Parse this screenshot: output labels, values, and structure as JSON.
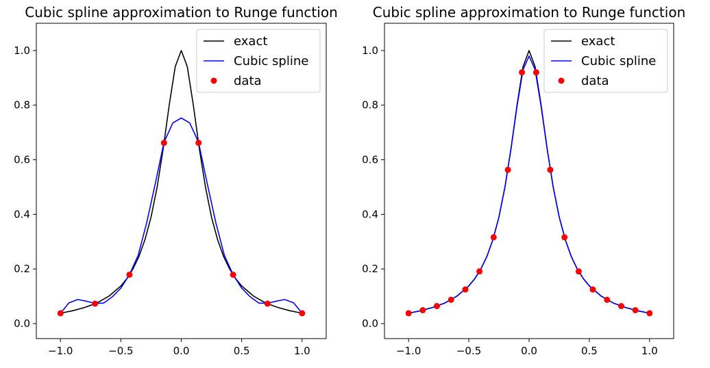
{
  "chart_data": [
    {
      "type": "line",
      "title": "Cubic spline approximation to Runge function",
      "xlabel": "",
      "ylabel": "",
      "xlim": [
        -1.2,
        1.2
      ],
      "ylim": [
        -0.055,
        1.1
      ],
      "xticks": [
        -1.0,
        -0.5,
        0.0,
        0.5,
        1.0
      ],
      "xtick_labels": [
        "−1.0",
        "−0.5",
        "0.0",
        "0.5",
        "1.0"
      ],
      "yticks": [
        0.0,
        0.2,
        0.4,
        0.6,
        0.8,
        1.0
      ],
      "ytick_labels": [
        "0.0",
        "0.2",
        "0.4",
        "0.6",
        "0.8",
        "1.0"
      ],
      "grid": false,
      "legend": "top-right",
      "series": [
        {
          "name": "exact",
          "color": "#000000",
          "style": "line",
          "x": [
            -1.0,
            -0.9,
            -0.8,
            -0.7,
            -0.6,
            -0.5,
            -0.45,
            -0.4,
            -0.35,
            -0.3,
            -0.25,
            -0.2,
            -0.15,
            -0.1,
            -0.05,
            0.0,
            0.05,
            0.1,
            0.15,
            0.2,
            0.25,
            0.3,
            0.35,
            0.4,
            0.45,
            0.5,
            0.6,
            0.7,
            0.8,
            0.9,
            1.0
          ],
          "y": [
            0.038,
            0.047,
            0.059,
            0.075,
            0.1,
            0.138,
            0.165,
            0.2,
            0.246,
            0.308,
            0.39,
            0.5,
            0.64,
            0.8,
            0.941,
            1.0,
            0.941,
            0.8,
            0.64,
            0.5,
            0.39,
            0.308,
            0.246,
            0.2,
            0.165,
            0.138,
            0.1,
            0.075,
            0.059,
            0.047,
            0.038
          ]
        },
        {
          "name": "Cubic spline",
          "color": "#0000ff",
          "style": "line",
          "x": [
            -1.0,
            -0.93,
            -0.857,
            -0.786,
            -0.714,
            -0.643,
            -0.571,
            -0.5,
            -0.429,
            -0.357,
            -0.286,
            -0.214,
            -0.143,
            -0.07,
            0.0,
            0.07,
            0.143,
            0.214,
            0.286,
            0.357,
            0.429,
            0.5,
            0.571,
            0.643,
            0.714,
            0.786,
            0.857,
            0.93,
            1.0
          ],
          "y": [
            0.038,
            0.076,
            0.088,
            0.082,
            0.074,
            0.075,
            0.098,
            0.13,
            0.179,
            0.25,
            0.37,
            0.515,
            0.664,
            0.735,
            0.753,
            0.735,
            0.664,
            0.515,
            0.37,
            0.25,
            0.179,
            0.13,
            0.098,
            0.075,
            0.074,
            0.082,
            0.088,
            0.076,
            0.038
          ]
        },
        {
          "name": "data",
          "color": "#ff0000",
          "style": "markers",
          "x": [
            -1.0,
            -0.714,
            -0.429,
            -0.143,
            0.143,
            0.429,
            0.714,
            1.0
          ],
          "y": [
            0.038,
            0.073,
            0.179,
            0.662,
            0.662,
            0.179,
            0.073,
            0.038
          ]
        }
      ]
    },
    {
      "type": "line",
      "title": "Cubic spline approximation to Runge function",
      "xlabel": "",
      "ylabel": "",
      "xlim": [
        -1.2,
        1.2
      ],
      "ylim": [
        -0.055,
        1.1
      ],
      "xticks": [
        -1.0,
        -0.5,
        0.0,
        0.5,
        1.0
      ],
      "xtick_labels": [
        "−1.0",
        "−0.5",
        "0.0",
        "0.5",
        "1.0"
      ],
      "yticks": [
        0.0,
        0.2,
        0.4,
        0.6,
        0.8,
        1.0
      ],
      "ytick_labels": [
        "0.0",
        "0.2",
        "0.4",
        "0.6",
        "0.8",
        "1.0"
      ],
      "grid": false,
      "legend": "top-right",
      "series": [
        {
          "name": "exact",
          "color": "#000000",
          "style": "line",
          "x": [
            -1.0,
            -0.9,
            -0.8,
            -0.7,
            -0.6,
            -0.5,
            -0.45,
            -0.4,
            -0.35,
            -0.3,
            -0.25,
            -0.2,
            -0.15,
            -0.1,
            -0.05,
            0.0,
            0.05,
            0.1,
            0.15,
            0.2,
            0.25,
            0.3,
            0.35,
            0.4,
            0.45,
            0.5,
            0.6,
            0.7,
            0.8,
            0.9,
            1.0
          ],
          "y": [
            0.038,
            0.047,
            0.059,
            0.075,
            0.1,
            0.138,
            0.165,
            0.2,
            0.246,
            0.308,
            0.39,
            0.5,
            0.64,
            0.8,
            0.941,
            1.0,
            0.941,
            0.8,
            0.64,
            0.5,
            0.39,
            0.308,
            0.246,
            0.2,
            0.165,
            0.138,
            0.1,
            0.075,
            0.059,
            0.047,
            0.038
          ]
        },
        {
          "name": "Cubic spline",
          "color": "#0000ff",
          "style": "line",
          "x": [
            -1.0,
            -0.9,
            -0.8,
            -0.7,
            -0.6,
            -0.5,
            -0.45,
            -0.4,
            -0.35,
            -0.3,
            -0.25,
            -0.2,
            -0.15,
            -0.1,
            -0.05,
            0.0,
            0.05,
            0.1,
            0.15,
            0.2,
            0.25,
            0.3,
            0.35,
            0.4,
            0.45,
            0.5,
            0.6,
            0.7,
            0.8,
            0.9,
            1.0
          ],
          "y": [
            0.038,
            0.047,
            0.059,
            0.075,
            0.1,
            0.138,
            0.165,
            0.2,
            0.246,
            0.308,
            0.39,
            0.5,
            0.64,
            0.795,
            0.93,
            0.98,
            0.93,
            0.795,
            0.64,
            0.5,
            0.39,
            0.308,
            0.246,
            0.2,
            0.165,
            0.138,
            0.1,
            0.075,
            0.059,
            0.047,
            0.038
          ]
        },
        {
          "name": "data",
          "color": "#ff0000",
          "style": "markers",
          "x": [
            -1.0,
            -0.882,
            -0.765,
            -0.647,
            -0.529,
            -0.412,
            -0.294,
            -0.176,
            -0.059,
            0.059,
            0.176,
            0.294,
            0.412,
            0.529,
            0.647,
            0.765,
            0.882,
            1.0
          ],
          "y": [
            0.038,
            0.049,
            0.064,
            0.087,
            0.125,
            0.191,
            0.316,
            0.563,
            0.92,
            0.92,
            0.563,
            0.316,
            0.191,
            0.125,
            0.087,
            0.064,
            0.049,
            0.038
          ]
        }
      ]
    }
  ]
}
